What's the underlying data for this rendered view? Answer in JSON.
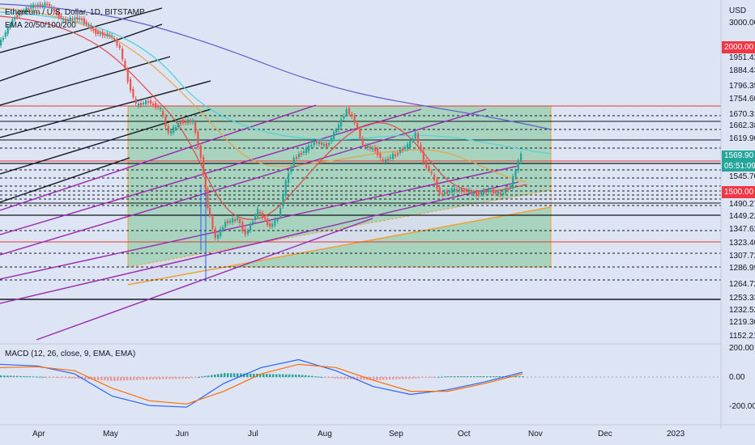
{
  "header": {
    "symbol_title": "Ethereum / U.S. Dollar, 1D, BITSTAMP",
    "indicator": "EMA 20/50/100/200",
    "macd_label": "MACD (12, 26, close, 9, EMA, EMA)"
  },
  "price_axis": {
    "currency": "USD",
    "labels": [
      "3000.00",
      "1951.42",
      "1884.43",
      "1796.35",
      "1754.60",
      "1670.31",
      "1662.38",
      "1619.90",
      "1545.70",
      "1490.27",
      "1449.22",
      "1347.62",
      "1323.40",
      "1307.72",
      "1286.99",
      "1264.72",
      "1253.33",
      "1232.52",
      "1219.30",
      "1152.21"
    ],
    "highlight_red_top": "2000.00",
    "current_price": "1569.90",
    "countdown": "05:51:09",
    "highlight_red_mid": "1500.00"
  },
  "macd_axis": {
    "labels": [
      "200.00",
      "0.00",
      "-200.00"
    ]
  },
  "time_axis": {
    "labels": [
      "Apr",
      "May",
      "Jun",
      "Jul",
      "Aug",
      "Sep",
      "Oct",
      "Nov",
      "Dec",
      "2023"
    ]
  },
  "colors": {
    "background": "#dde4f3",
    "bull": "#26a69a",
    "bear": "#ef5350",
    "zone_fill": "#7cc492",
    "zone_border": "#f0a030",
    "channel_purple": "#9c27b0",
    "ema_blue": "#5a5ccc",
    "ema_cyan": "#4fd3df",
    "ema_orange": "#e7a34a",
    "ema_red": "#e0474c",
    "price_tag": "#26a69a",
    "red_tag": "#f23645"
  },
  "chart_data": {
    "type": "candlestick",
    "title": "Ethereum / U.S. Dollar, 1D, BITSTAMP",
    "y_range": [
      1150,
      3000
    ],
    "time_range": [
      "Mar 25",
      "Jan 5"
    ],
    "candles_approx_close": [
      {
        "date": "Apr 01",
        "close": 3300
      },
      {
        "date": "Apr 15",
        "close": 3050
      },
      {
        "date": "May 01",
        "close": 2850
      },
      {
        "date": "May 10",
        "close": 2350
      },
      {
        "date": "May 20",
        "close": 2000
      },
      {
        "date": "Jun 01",
        "close": 1850
      },
      {
        "date": "Jun 10",
        "close": 1800
      },
      {
        "date": "Jun 15",
        "close": 1200
      },
      {
        "date": "Jun 20",
        "close": 1130
      },
      {
        "date": "Jul 01",
        "close": 1070
      },
      {
        "date": "Jul 10",
        "close": 1180
      },
      {
        "date": "Jul 20",
        "close": 1550
      },
      {
        "date": "Aug 01",
        "close": 1650
      },
      {
        "date": "Aug 14",
        "close": 1980
      },
      {
        "date": "Aug 20",
        "close": 1620
      },
      {
        "date": "Sep 01",
        "close": 1560
      },
      {
        "date": "Sep 10",
        "close": 1720
      },
      {
        "date": "Sep 20",
        "close": 1330
      },
      {
        "date": "Oct 01",
        "close": 1320
      },
      {
        "date": "Oct 15",
        "close": 1300
      },
      {
        "date": "Oct 25",
        "close": 1480
      },
      {
        "date": "Oct 27",
        "close": 1569.9
      }
    ],
    "macd": {
      "macd_line": [
        80,
        70,
        20,
        -120,
        -180,
        -190,
        -40,
        60,
        110,
        40,
        -60,
        -110,
        -80,
        -30,
        30
      ],
      "signal_line": [
        60,
        65,
        40,
        -70,
        -150,
        -170,
        -90,
        20,
        80,
        60,
        -20,
        -90,
        -90,
        -40,
        20
      ],
      "y_range": [
        -230,
        230
      ]
    }
  }
}
